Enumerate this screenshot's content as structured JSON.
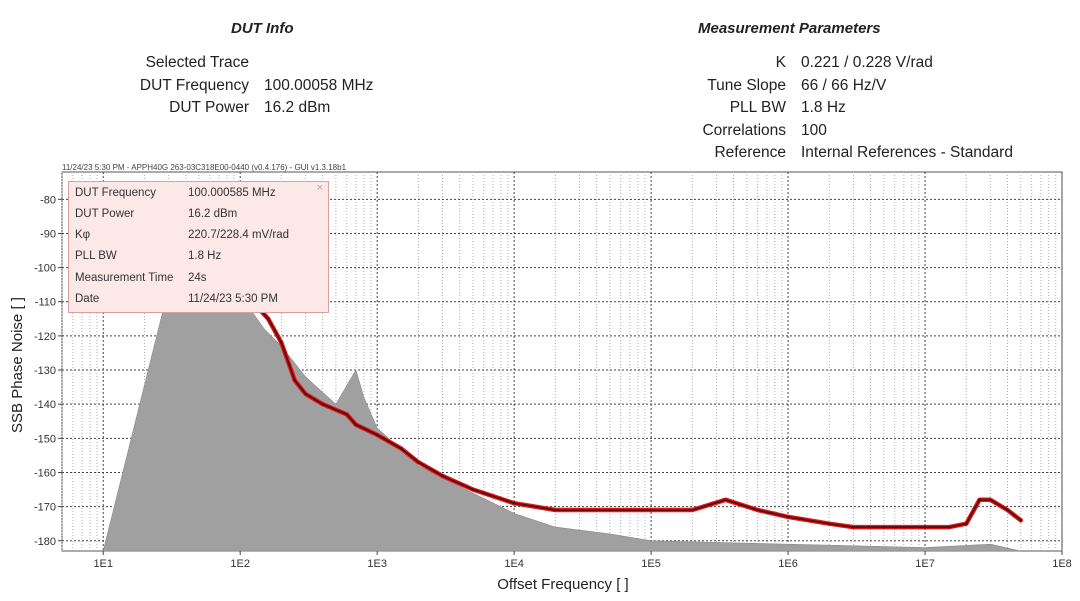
{
  "dut_info": {
    "title": "DUT Info",
    "rows": [
      {
        "label": "Selected Trace",
        "value": ""
      },
      {
        "label": "DUT Frequency",
        "value": "100.00058 MHz"
      },
      {
        "label": "DUT Power",
        "value": "16.2 dBm"
      }
    ]
  },
  "measurement_parameters": {
    "title": "Measurement Parameters",
    "rows": [
      {
        "label": "K",
        "value": "0.221 / 0.228 V/rad"
      },
      {
        "label": "Tune Slope",
        "value": "66 / 66 Hz/V"
      },
      {
        "label": "PLL BW",
        "value": "1.8 Hz"
      },
      {
        "label": "Correlations",
        "value": "100"
      },
      {
        "label": "Reference",
        "value": "Internal References - Standard"
      }
    ]
  },
  "plot_header": "11/24/23 5:30 PM - APPH40G 263-03C318E00-0440 (v0.4.176) - GUI v1.3.18b1",
  "tooltip": {
    "close": "×",
    "rows": [
      {
        "label": "DUT Frequency",
        "value": "100.000585 MHz"
      },
      {
        "label": "DUT Power",
        "value": "16.2 dBm"
      },
      {
        "label": "Kφ",
        "value": "220.7/228.4 mV/rad"
      },
      {
        "label": "PLL BW",
        "value": "1.8 Hz"
      },
      {
        "label": "Measurement Time",
        "value": "24s"
      },
      {
        "label": "Date",
        "value": "11/24/23 5:30 PM"
      }
    ]
  },
  "colors": {
    "trace_raw": "#e8161b",
    "trace_smooth": "#5a0d0d",
    "correlation_floor": "#a0a0a0",
    "tooltip_bg": "#fde8e8"
  },
  "chart_data": {
    "type": "line",
    "title": "",
    "xlabel": "Offset Frequency [ ]",
    "ylabel": "SSB Phase Noise [ ]",
    "x_scale": "log",
    "xlim": [
      5,
      100000000
    ],
    "ylim": [
      -183,
      -72
    ],
    "x_ticks": [
      {
        "value": 10,
        "label": "1E1"
      },
      {
        "value": 100,
        "label": "1E2"
      },
      {
        "value": 1000,
        "label": "1E3"
      },
      {
        "value": 10000,
        "label": "1E4"
      },
      {
        "value": 100000,
        "label": "1E5"
      },
      {
        "value": 1000000,
        "label": "1E6"
      },
      {
        "value": 10000000,
        "label": "1E7"
      },
      {
        "value": 100000000,
        "label": "1E8"
      }
    ],
    "y_ticks": [
      -80,
      -90,
      -100,
      -110,
      -120,
      -130,
      -140,
      -150,
      -160,
      -170,
      -180
    ],
    "grid": true,
    "series": [
      {
        "x": [
          100,
          130,
          160,
          200,
          250,
          300,
          400,
          600,
          700,
          1000,
          1500,
          2000,
          3000,
          5000,
          10000,
          20000,
          50000,
          100000,
          200000,
          350000,
          600000,
          1000000,
          2000000,
          3000000,
          5000000,
          10000000,
          15000000,
          20000000,
          25000000,
          30000000,
          40000000,
          50000000
        ],
        "y": [
          -107,
          -111,
          -115,
          -122,
          -133,
          -137,
          -140,
          -143,
          -146,
          -149,
          -153,
          -157,
          -161,
          -165,
          -169,
          -171,
          -171,
          -171,
          -171,
          -168,
          -171,
          -173,
          -175,
          -176,
          -176,
          -176,
          -176,
          -175,
          -168,
          -168,
          -171,
          -174
        ]
      },
      {
        "x": [
          10,
          30,
          60,
          100,
          150,
          200,
          300,
          500,
          700,
          800,
          1000,
          2000,
          5000,
          10000,
          20000,
          50000,
          100000,
          1000000,
          10000000,
          30000000,
          50000000
        ],
        "y": [
          -183,
          -106,
          -105,
          -108,
          -118,
          -123,
          -132,
          -140,
          -130,
          -138,
          -147,
          -158,
          -166,
          -172,
          -176,
          -178,
          -180,
          -181,
          -182,
          -181,
          -183
        ]
      }
    ]
  }
}
